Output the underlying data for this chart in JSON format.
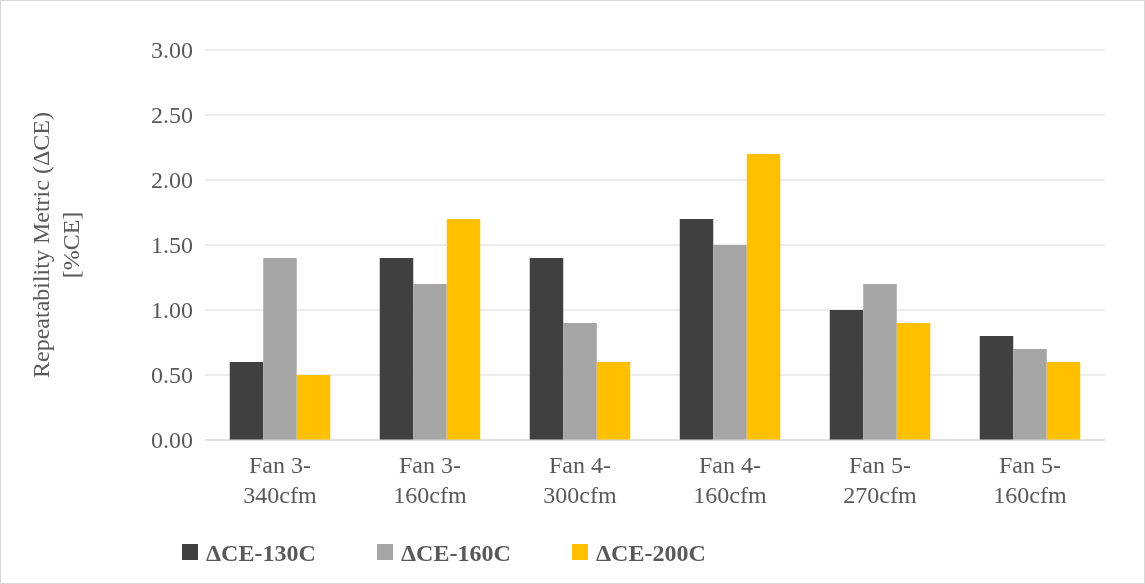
{
  "chart_data": {
    "type": "bar",
    "ylabel": "Repeatability Metric (ΔCE) [%CE]",
    "categories": [
      "Fan 3-340cfm",
      "Fan 3-160cfm",
      "Fan 4-300cfm",
      "Fan 4-160cfm",
      "Fan 5-270cfm",
      "Fan 5-160cfm"
    ],
    "series": [
      {
        "name": "ΔCE-130C",
        "color": "#404040",
        "values": [
          0.6,
          1.4,
          1.4,
          1.7,
          1.0,
          0.8
        ]
      },
      {
        "name": "ΔCE-160C",
        "color": "#a5a5a5",
        "values": [
          1.4,
          1.2,
          0.9,
          1.5,
          1.2,
          0.7
        ]
      },
      {
        "name": "ΔCE-200C",
        "color": "#ffc000",
        "values": [
          0.5,
          1.7,
          0.6,
          2.2,
          0.9,
          0.6
        ]
      }
    ],
    "ylim": [
      0,
      3
    ],
    "yticks": [
      {
        "value": 0,
        "label": "0.00"
      },
      {
        "value": 0.5,
        "label": "0.50"
      },
      {
        "value": 1,
        "label": "1.00"
      },
      {
        "value": 1.5,
        "label": "1.50"
      },
      {
        "value": 2,
        "label": "2.00"
      },
      {
        "value": 2.5,
        "label": "2.50"
      },
      {
        "value": 3,
        "label": "3.00"
      }
    ],
    "grid": "y",
    "legend": "bottom"
  }
}
